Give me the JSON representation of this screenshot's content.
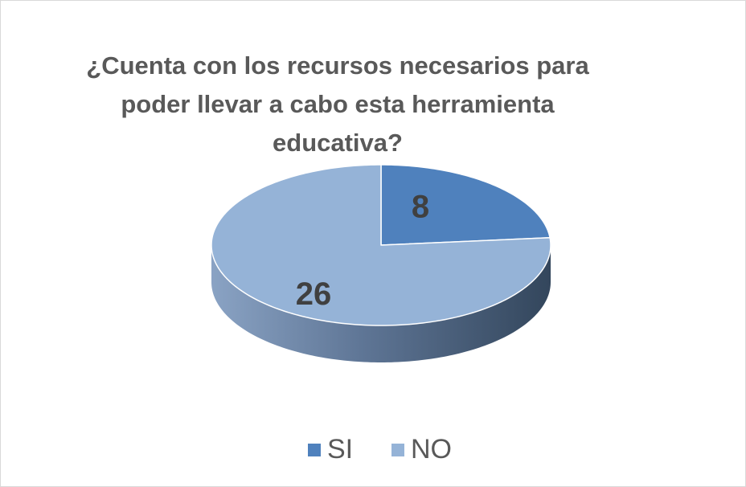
{
  "chart_data": {
    "type": "pie3d",
    "title": "¿Cuenta con los recursos necesarios para poder llevar a cabo esta herramienta educativa?",
    "categories": [
      "SI",
      "NO"
    ],
    "values": [
      8,
      26
    ],
    "colors": [
      "#4f81bd",
      "#95b3d7"
    ],
    "legend": "bottom"
  }
}
